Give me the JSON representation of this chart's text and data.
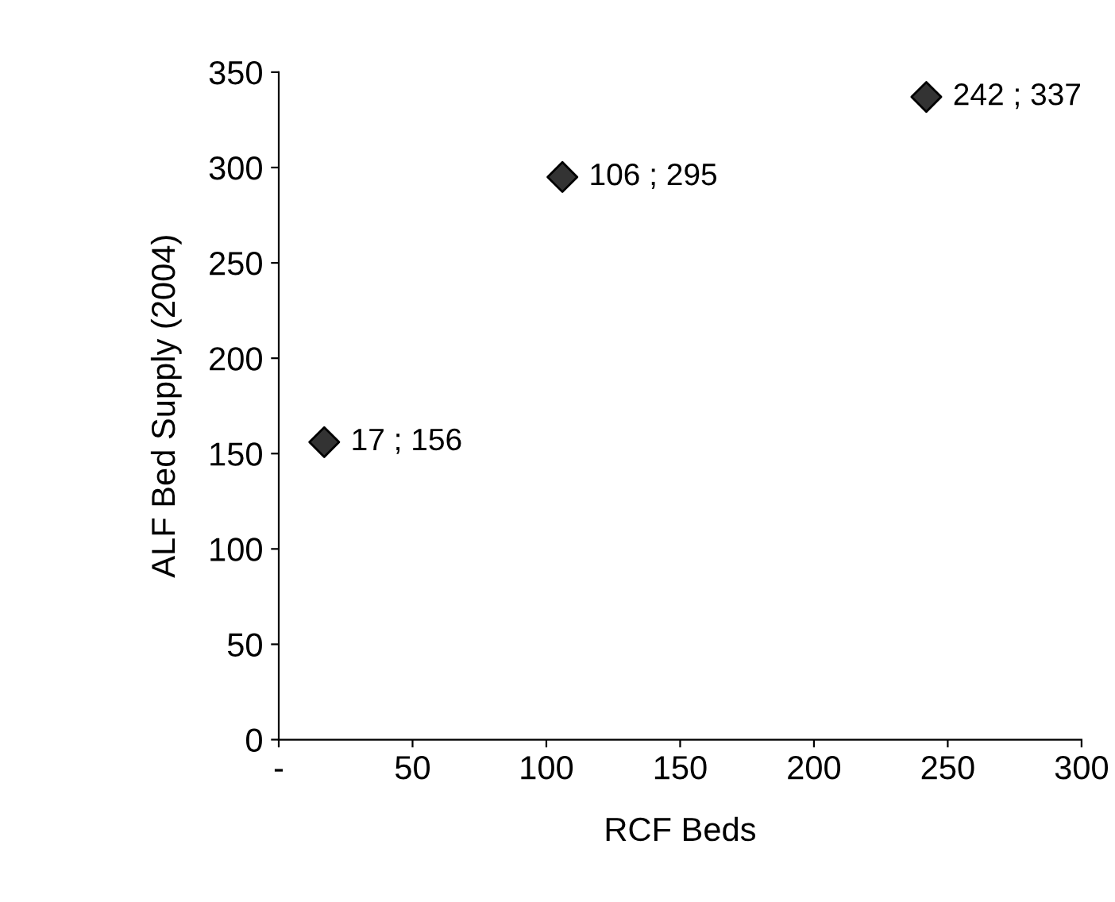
{
  "chart_data": {
    "type": "scatter",
    "xlabel": "RCF Beds",
    "ylabel": "ALF Bed Supply (2004)",
    "x": [
      17,
      106,
      242
    ],
    "values": [
      156,
      295,
      337
    ],
    "value_labels": [
      "17 ; 156",
      "106 ; 295",
      "242 ; 337"
    ],
    "color": "#333333",
    "marker": "diamond",
    "xlim": [
      0,
      300
    ],
    "xticks": [
      {
        "value": 0,
        "label": "-"
      },
      50,
      100,
      150,
      200,
      250,
      300
    ],
    "ylim": [
      0,
      350
    ],
    "yticks": [
      0,
      50,
      100,
      150,
      200,
      250,
      300,
      350
    ],
    "grid": false,
    "legend": false
  }
}
